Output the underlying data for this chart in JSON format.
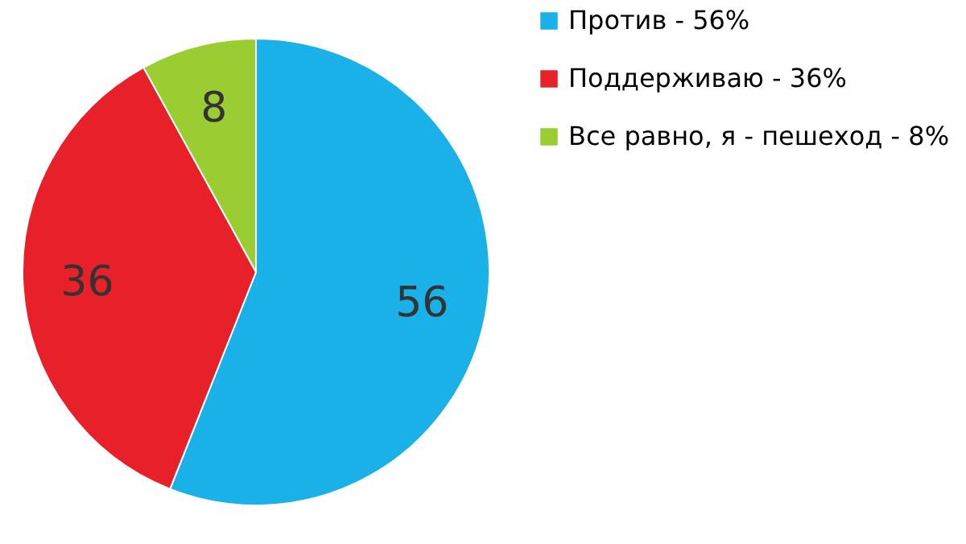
{
  "chart_data": {
    "type": "pie",
    "categories": [
      "Против - 56%",
      "Поддерживаю  - 36%",
      "Все равно, я - пешеход  - 8%"
    ],
    "values": [
      56,
      36,
      8
    ],
    "colors": [
      "#1ab0e8",
      "#e8202a",
      "#9acd32"
    ],
    "data_labels": true,
    "legend": "right"
  }
}
